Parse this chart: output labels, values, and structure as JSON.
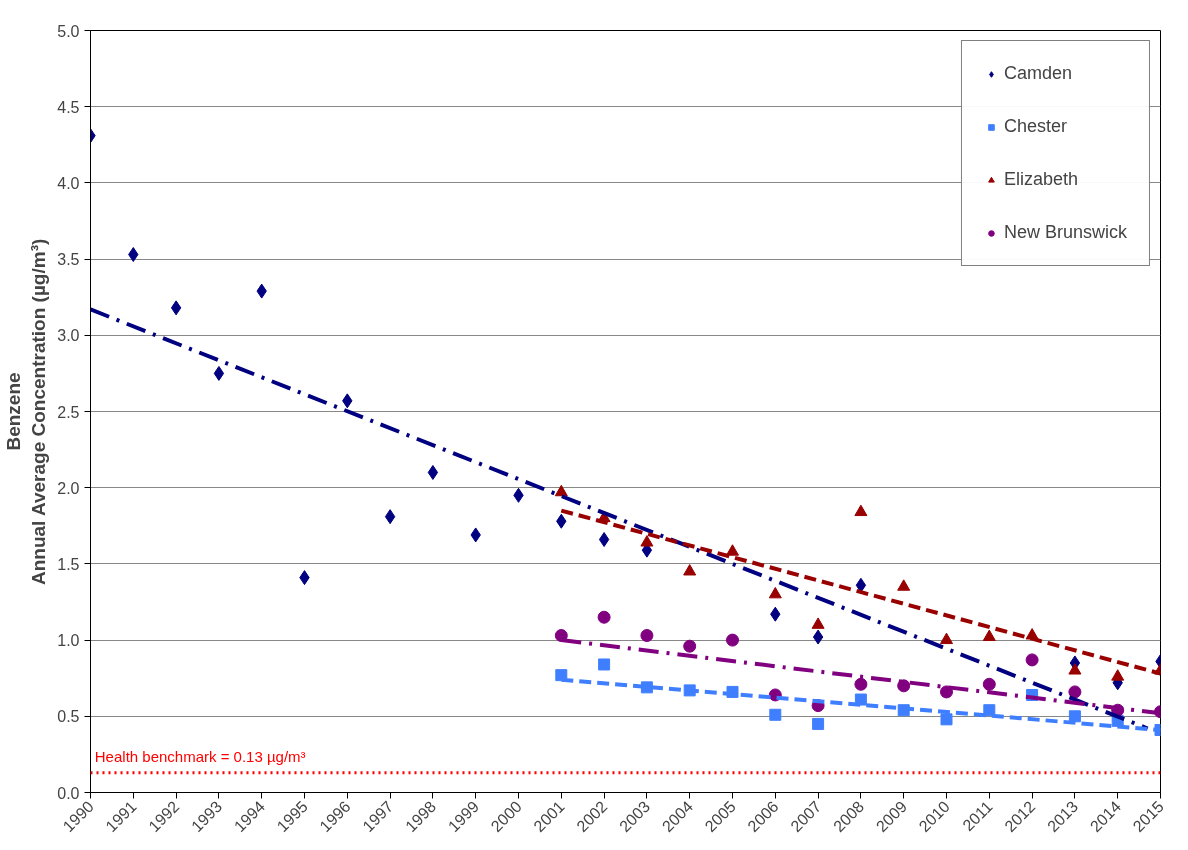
{
  "chart_data": {
    "type": "scatter",
    "ylabel": "Benzene\nAnnual Average Concentration (µg/m³)",
    "x": [
      1990,
      1991,
      1992,
      1993,
      1994,
      1995,
      1996,
      1997,
      1998,
      1999,
      2000,
      2001,
      2002,
      2003,
      2004,
      2005,
      2006,
      2007,
      2008,
      2009,
      2010,
      2011,
      2012,
      2013,
      2014,
      2015
    ],
    "series": [
      {
        "name": "Camden",
        "color": "#000080",
        "marker": "diamond",
        "values": [
          4.31,
          3.53,
          3.18,
          2.75,
          3.29,
          1.41,
          2.57,
          1.81,
          2.1,
          1.69,
          1.95,
          1.78,
          1.66,
          1.59,
          null,
          null,
          1.17,
          1.02,
          1.36,
          null,
          null,
          null,
          null,
          0.85,
          0.72,
          0.86
        ]
      },
      {
        "name": "Chester",
        "color": "#3f7fff",
        "marker": "square",
        "x": [
          2001,
          2002,
          2003,
          2004,
          2005,
          2006,
          2007,
          2008,
          2009,
          2010,
          2011,
          2012,
          2013,
          2014,
          2015
        ],
        "values": [
          0.77,
          0.84,
          0.69,
          0.67,
          0.66,
          0.51,
          0.45,
          0.61,
          0.54,
          0.48,
          0.54,
          0.64,
          0.5,
          0.47,
          0.41
        ]
      },
      {
        "name": "Elizabeth",
        "color": "#990000",
        "marker": "triangle",
        "x": [
          2001,
          2002,
          2003,
          2004,
          2005,
          2006,
          2007,
          2008,
          2009,
          2010,
          2011,
          2012,
          2013,
          2014,
          2015
        ],
        "values": [
          1.97,
          1.8,
          1.64,
          1.45,
          1.58,
          1.3,
          1.1,
          1.84,
          1.35,
          1.0,
          1.02,
          1.03,
          0.8,
          0.76,
          0.8
        ]
      },
      {
        "name": "New Brunswick",
        "color": "#800080",
        "marker": "circle",
        "x": [
          2001,
          2002,
          2003,
          2004,
          2005,
          2006,
          2007,
          2008,
          2009,
          2010,
          2011,
          2012,
          2013,
          2014,
          2015
        ],
        "values": [
          1.03,
          1.15,
          1.03,
          0.96,
          1.0,
          0.64,
          0.57,
          0.71,
          0.7,
          0.66,
          0.71,
          0.87,
          0.66,
          0.54,
          0.53
        ]
      },
      {
        "type": "line",
        "color": "#000080",
        "line_style": "dashdot",
        "x": [
          1990,
          2014.7
        ],
        "values": [
          3.17,
          0.42
        ]
      },
      {
        "type": "line",
        "color": "#3f7fff",
        "line_style": "dashed",
        "x": [
          2001,
          2015
        ],
        "values": [
          0.74,
          0.41
        ]
      },
      {
        "type": "line",
        "color": "#990000",
        "line_style": "dashed",
        "x": [
          2001,
          2015
        ],
        "values": [
          1.85,
          0.78
        ]
      },
      {
        "type": "line",
        "color": "#800080",
        "line_style": "dashdot",
        "x": [
          2001,
          2015
        ],
        "values": [
          1.0,
          0.52
        ]
      }
    ],
    "xlim": [
      1990,
      2015
    ],
    "xticks": [
      1990,
      1991,
      1992,
      1993,
      1994,
      1995,
      1996,
      1997,
      1998,
      1999,
      2000,
      2001,
      2002,
      2003,
      2004,
      2005,
      2006,
      2007,
      2008,
      2009,
      2010,
      2011,
      2012,
      2013,
      2014,
      2015
    ],
    "ylim": [
      0,
      5
    ],
    "yticks": [
      {
        "value": 0,
        "label": "0.0"
      },
      {
        "value": 0.5,
        "label": "0.5"
      },
      {
        "value": 1,
        "label": "1.0"
      },
      {
        "value": 1.5,
        "label": "1.5"
      },
      {
        "value": 2,
        "label": "2.0"
      },
      {
        "value": 2.5,
        "label": "2.5"
      },
      {
        "value": 3,
        "label": "3.0"
      },
      {
        "value": 3.5,
        "label": "3.5"
      },
      {
        "value": 4,
        "label": "4.0"
      },
      {
        "value": 4.5,
        "label": "4.5"
      },
      {
        "value": 5,
        "label": "5.0"
      }
    ],
    "grid": "y",
    "legend": "top right",
    "ref_lines": [
      {
        "axis": "y",
        "value": 0.13,
        "label": "Health benchmark = 0.13 µg/m³",
        "color": "#ff0000",
        "line_style": "dotted"
      }
    ]
  }
}
